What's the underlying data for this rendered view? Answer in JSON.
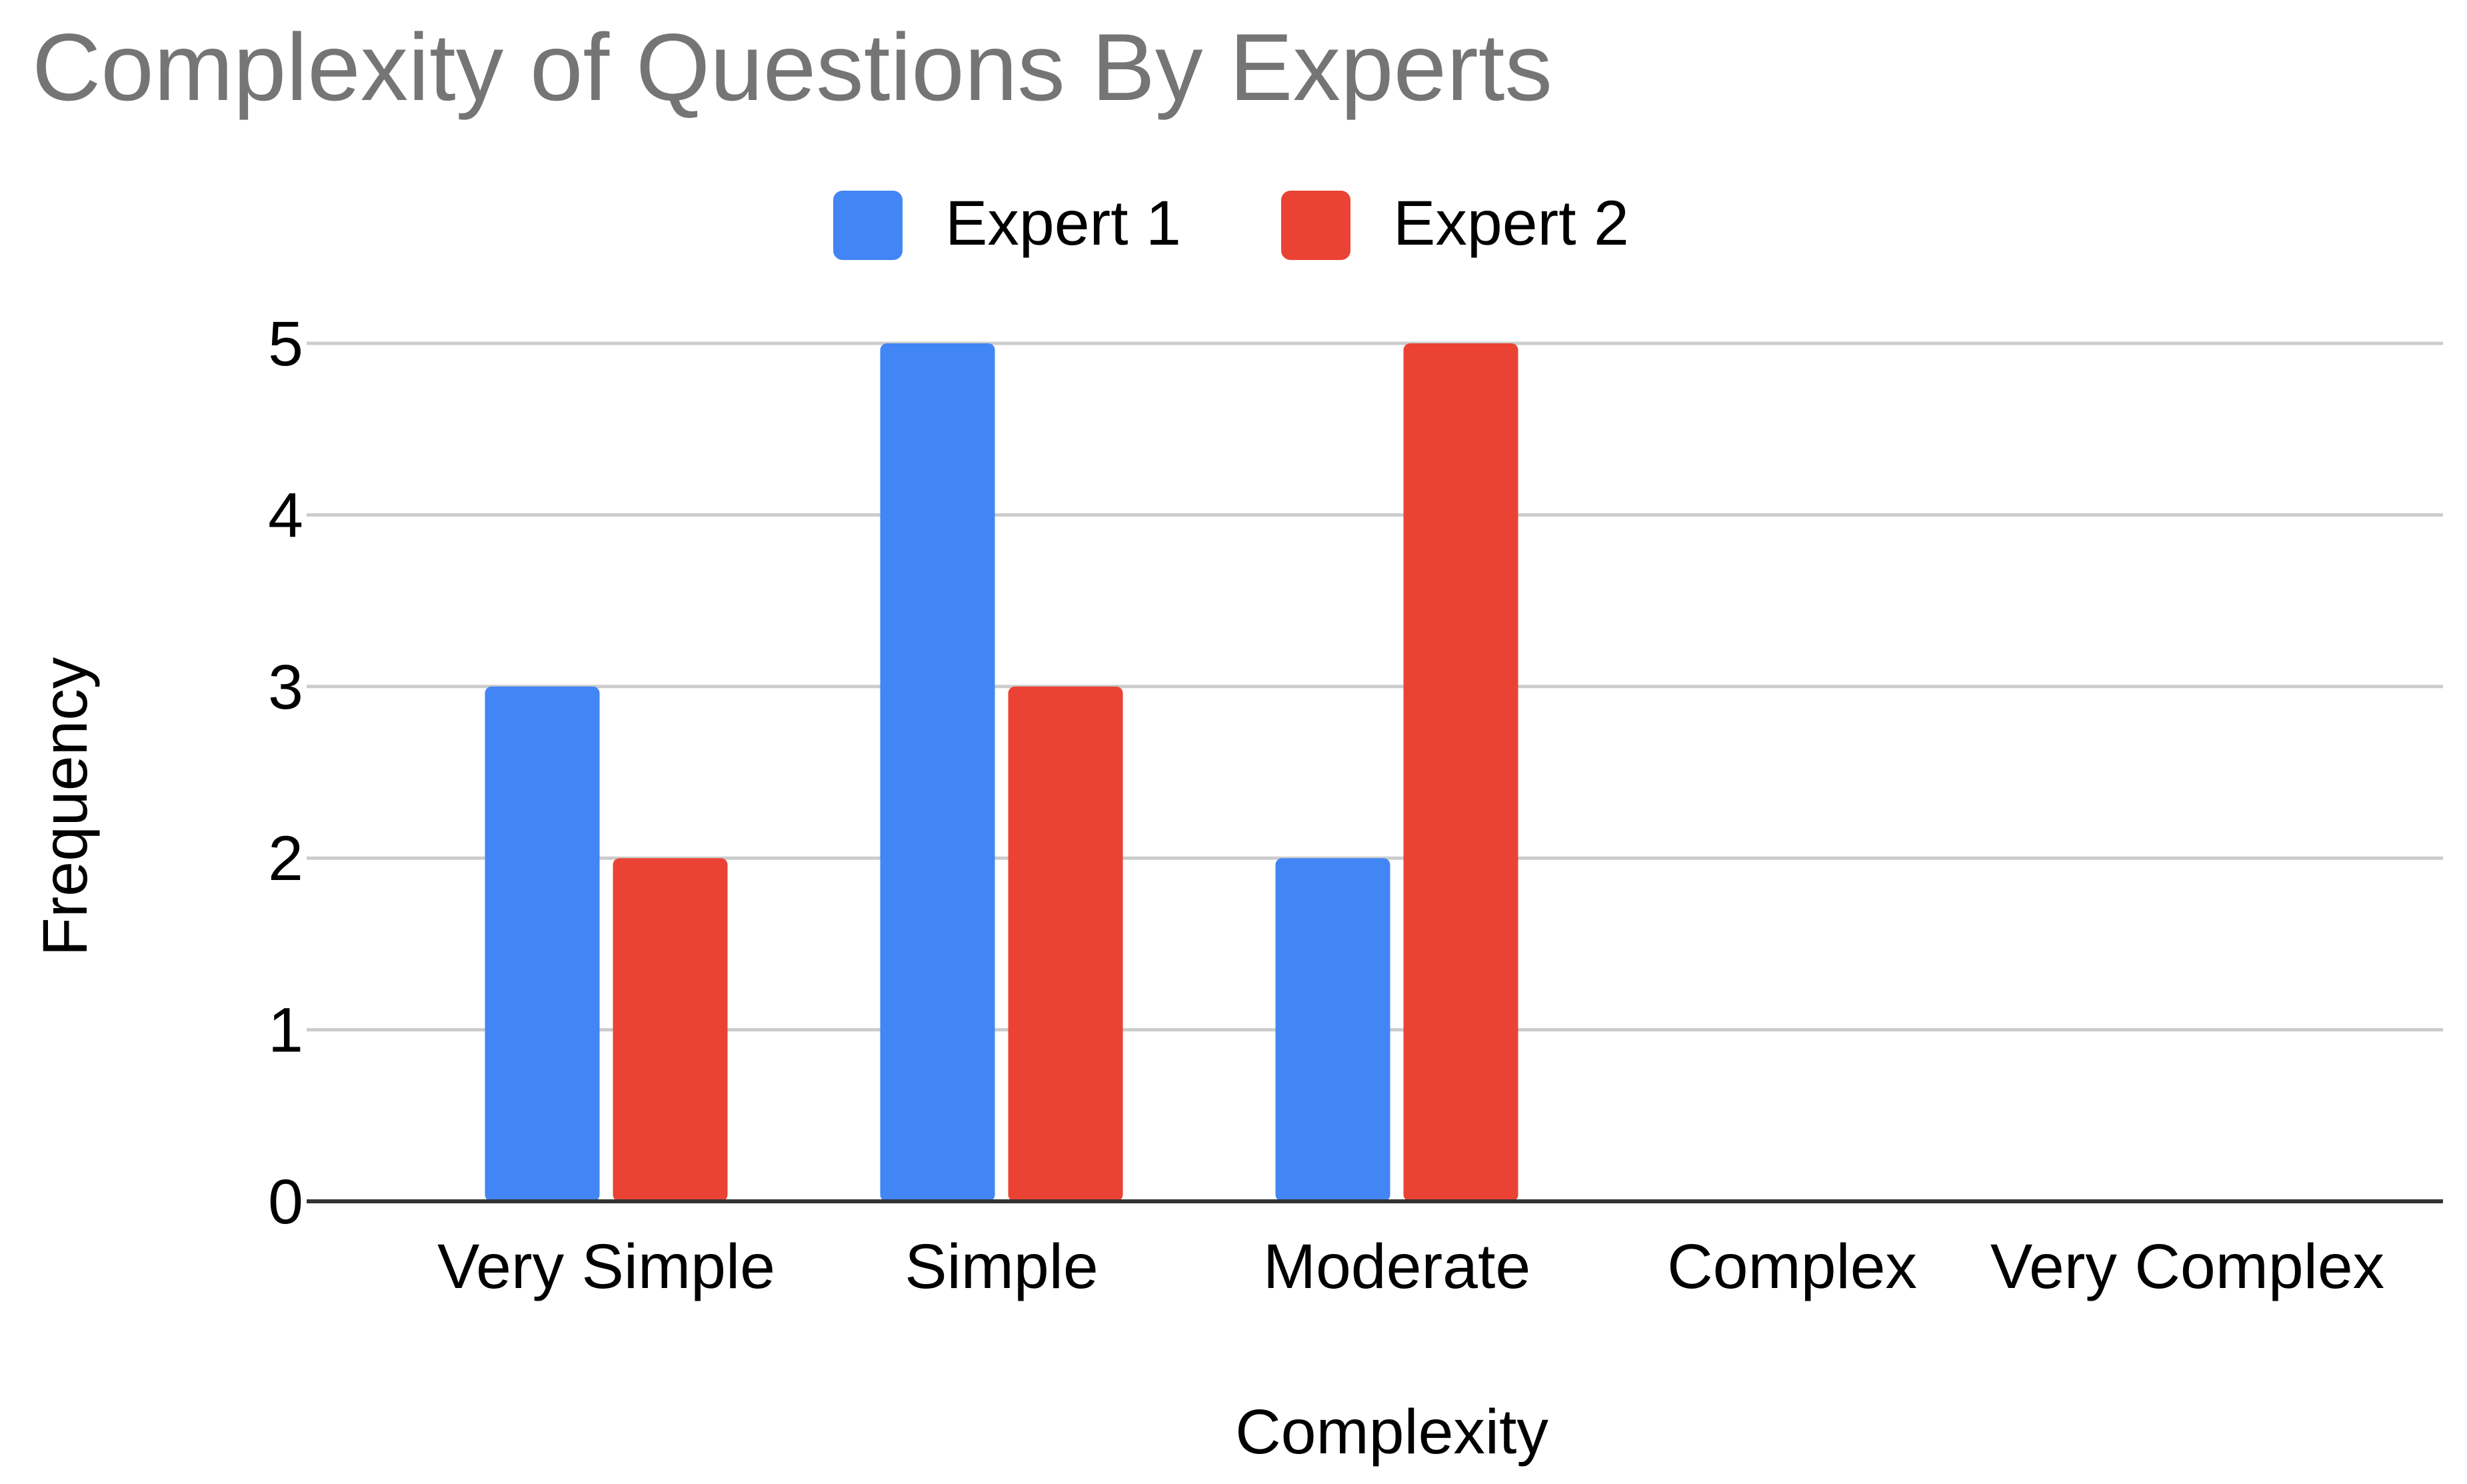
{
  "chart_data": {
    "type": "bar",
    "title": "Complexity of Questions By Experts",
    "xlabel": "Complexity",
    "ylabel": "Frequency",
    "categories": [
      "Very Simple",
      "Simple",
      "Moderate",
      "Complex",
      "Very Complex"
    ],
    "series": [
      {
        "name": "Expert 1",
        "color": "#4285F4",
        "values": [
          3,
          5,
          2,
          0,
          0
        ]
      },
      {
        "name": "Expert 2",
        "color": "#EA4335",
        "values": [
          2,
          3,
          5,
          0,
          0
        ]
      }
    ],
    "ylim": [
      0,
      5
    ],
    "yticks": [
      0,
      1,
      2,
      3,
      4,
      5
    ],
    "grid": true,
    "legend_position": "top-center"
  }
}
